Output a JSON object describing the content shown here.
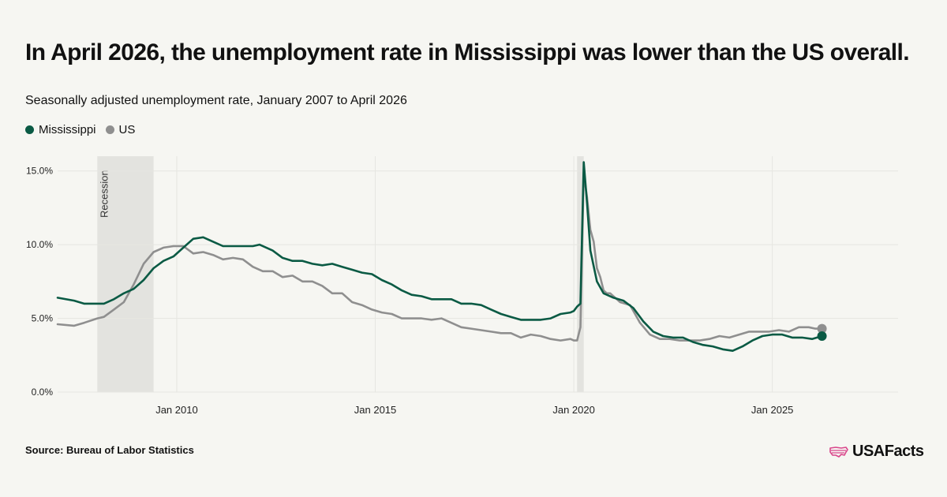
{
  "title": "In April 2026, the unemployment rate in Mississippi was lower than the US overall.",
  "subtitle": "Seasonally adjusted unemployment rate, January 2007 to April 2026",
  "source": "Source: Bureau of Labor Statistics",
  "brand": "USAFacts",
  "colors": {
    "mississippi": "#0a5a44",
    "us": "#8f8f8f",
    "recession": "#e3e3df",
    "grid": "#e6e6e1"
  },
  "chart_data": {
    "type": "line",
    "title": "In April 2026, the unemployment rate in Mississippi was lower than the US overall.",
    "subtitle": "Seasonally adjusted unemployment rate, January 2007 to April 2026",
    "x_range": [
      "2007-01",
      "2028-03"
    ],
    "ylim": [
      0,
      16
    ],
    "y_ticks": [
      0,
      5,
      10,
      15
    ],
    "y_tick_labels": [
      "0.0%",
      "5.0%",
      "10.0%",
      "15.0%"
    ],
    "x_ticks": [
      2010,
      2015,
      2020,
      2025
    ],
    "x_tick_labels": [
      "Jan 2010",
      "Jan 2015",
      "Jan 2020",
      "Jan 2025"
    ],
    "grid": true,
    "legend_position": "top-left",
    "recessions": [
      {
        "start": "2008-01",
        "end": "2009-06",
        "label": "Recession"
      },
      {
        "start": "2020-02",
        "end": "2020-04",
        "label": ""
      }
    ],
    "series": [
      {
        "name": "Mississippi",
        "color": "#0a5a44",
        "values": [
          [
            "2007-01",
            6.4
          ],
          [
            "2007-06",
            6.2
          ],
          [
            "2007-09",
            6.0
          ],
          [
            "2008-01",
            6.0
          ],
          [
            "2008-03",
            6.0
          ],
          [
            "2008-06",
            6.3
          ],
          [
            "2008-09",
            6.7
          ],
          [
            "2008-12",
            7.0
          ],
          [
            "2009-03",
            7.6
          ],
          [
            "2009-06",
            8.4
          ],
          [
            "2009-09",
            8.9
          ],
          [
            "2009-12",
            9.2
          ],
          [
            "2010-03",
            9.8
          ],
          [
            "2010-06",
            10.4
          ],
          [
            "2010-09",
            10.5
          ],
          [
            "2010-12",
            10.2
          ],
          [
            "2011-03",
            9.9
          ],
          [
            "2011-06",
            9.9
          ],
          [
            "2011-09",
            9.9
          ],
          [
            "2011-12",
            9.9
          ],
          [
            "2012-02",
            10.0
          ],
          [
            "2012-06",
            9.6
          ],
          [
            "2012-09",
            9.1
          ],
          [
            "2012-12",
            8.9
          ],
          [
            "2013-03",
            8.9
          ],
          [
            "2013-06",
            8.7
          ],
          [
            "2013-09",
            8.6
          ],
          [
            "2013-12",
            8.7
          ],
          [
            "2014-03",
            8.5
          ],
          [
            "2014-06",
            8.3
          ],
          [
            "2014-09",
            8.1
          ],
          [
            "2014-12",
            8.0
          ],
          [
            "2015-03",
            7.6
          ],
          [
            "2015-06",
            7.3
          ],
          [
            "2015-09",
            6.9
          ],
          [
            "2015-12",
            6.6
          ],
          [
            "2016-03",
            6.5
          ],
          [
            "2016-06",
            6.3
          ],
          [
            "2016-12",
            6.3
          ],
          [
            "2017-03",
            6.0
          ],
          [
            "2017-06",
            6.0
          ],
          [
            "2017-09",
            5.9
          ],
          [
            "2017-12",
            5.6
          ],
          [
            "2018-03",
            5.3
          ],
          [
            "2018-06",
            5.1
          ],
          [
            "2018-09",
            4.9
          ],
          [
            "2018-12",
            4.9
          ],
          [
            "2019-03",
            4.9
          ],
          [
            "2019-06",
            5.0
          ],
          [
            "2019-09",
            5.3
          ],
          [
            "2019-12",
            5.4
          ],
          [
            "2020-01",
            5.5
          ],
          [
            "2020-02",
            5.8
          ],
          [
            "2020-03",
            6.0
          ],
          [
            "2020-04",
            15.6
          ],
          [
            "2020-05",
            12.8
          ],
          [
            "2020-06",
            9.6
          ],
          [
            "2020-08",
            7.5
          ],
          [
            "2020-10",
            6.7
          ],
          [
            "2021-01",
            6.4
          ],
          [
            "2021-04",
            6.2
          ],
          [
            "2021-07",
            5.7
          ],
          [
            "2021-10",
            4.8
          ],
          [
            "2022-01",
            4.1
          ],
          [
            "2022-04",
            3.8
          ],
          [
            "2022-07",
            3.7
          ],
          [
            "2022-10",
            3.7
          ],
          [
            "2023-01",
            3.4
          ],
          [
            "2023-04",
            3.2
          ],
          [
            "2023-07",
            3.1
          ],
          [
            "2023-10",
            2.9
          ],
          [
            "2024-01",
            2.8
          ],
          [
            "2024-04",
            3.1
          ],
          [
            "2024-07",
            3.5
          ],
          [
            "2024-10",
            3.8
          ],
          [
            "2025-01",
            3.9
          ],
          [
            "2025-04",
            3.9
          ],
          [
            "2025-07",
            3.7
          ],
          [
            "2025-10",
            3.7
          ],
          [
            "2026-01",
            3.6
          ],
          [
            "2026-04",
            3.8
          ]
        ]
      },
      {
        "name": "US",
        "color": "#8f8f8f",
        "values": [
          [
            "2007-01",
            4.6
          ],
          [
            "2007-06",
            4.5
          ],
          [
            "2007-09",
            4.7
          ],
          [
            "2008-01",
            5.0
          ],
          [
            "2008-03",
            5.1
          ],
          [
            "2008-06",
            5.6
          ],
          [
            "2008-09",
            6.1
          ],
          [
            "2008-12",
            7.3
          ],
          [
            "2009-03",
            8.7
          ],
          [
            "2009-06",
            9.5
          ],
          [
            "2009-09",
            9.8
          ],
          [
            "2009-12",
            9.9
          ],
          [
            "2010-03",
            9.9
          ],
          [
            "2010-06",
            9.4
          ],
          [
            "2010-09",
            9.5
          ],
          [
            "2010-12",
            9.3
          ],
          [
            "2011-03",
            9.0
          ],
          [
            "2011-06",
            9.1
          ],
          [
            "2011-09",
            9.0
          ],
          [
            "2011-12",
            8.5
          ],
          [
            "2012-03",
            8.2
          ],
          [
            "2012-06",
            8.2
          ],
          [
            "2012-09",
            7.8
          ],
          [
            "2012-12",
            7.9
          ],
          [
            "2013-03",
            7.5
          ],
          [
            "2013-06",
            7.5
          ],
          [
            "2013-09",
            7.2
          ],
          [
            "2013-12",
            6.7
          ],
          [
            "2014-03",
            6.7
          ],
          [
            "2014-06",
            6.1
          ],
          [
            "2014-09",
            5.9
          ],
          [
            "2014-12",
            5.6
          ],
          [
            "2015-03",
            5.4
          ],
          [
            "2015-06",
            5.3
          ],
          [
            "2015-09",
            5.0
          ],
          [
            "2015-12",
            5.0
          ],
          [
            "2016-03",
            5.0
          ],
          [
            "2016-06",
            4.9
          ],
          [
            "2016-09",
            5.0
          ],
          [
            "2016-12",
            4.7
          ],
          [
            "2017-03",
            4.4
          ],
          [
            "2017-06",
            4.3
          ],
          [
            "2017-09",
            4.2
          ],
          [
            "2017-12",
            4.1
          ],
          [
            "2018-03",
            4.0
          ],
          [
            "2018-06",
            4.0
          ],
          [
            "2018-09",
            3.7
          ],
          [
            "2018-12",
            3.9
          ],
          [
            "2019-03",
            3.8
          ],
          [
            "2019-06",
            3.6
          ],
          [
            "2019-09",
            3.5
          ],
          [
            "2019-12",
            3.6
          ],
          [
            "2020-01",
            3.5
          ],
          [
            "2020-02",
            3.5
          ],
          [
            "2020-03",
            4.4
          ],
          [
            "2020-04",
            14.8
          ],
          [
            "2020-05",
            13.2
          ],
          [
            "2020-06",
            11.0
          ],
          [
            "2020-07",
            10.2
          ],
          [
            "2020-08",
            8.4
          ],
          [
            "2020-09",
            7.8
          ],
          [
            "2020-10",
            6.9
          ],
          [
            "2020-11",
            6.7
          ],
          [
            "2020-12",
            6.7
          ],
          [
            "2021-03",
            6.1
          ],
          [
            "2021-06",
            5.9
          ],
          [
            "2021-09",
            4.7
          ],
          [
            "2021-12",
            3.9
          ],
          [
            "2022-03",
            3.6
          ],
          [
            "2022-06",
            3.6
          ],
          [
            "2022-09",
            3.5
          ],
          [
            "2022-12",
            3.5
          ],
          [
            "2023-03",
            3.5
          ],
          [
            "2023-06",
            3.6
          ],
          [
            "2023-09",
            3.8
          ],
          [
            "2023-12",
            3.7
          ],
          [
            "2024-03",
            3.9
          ],
          [
            "2024-06",
            4.1
          ],
          [
            "2024-09",
            4.1
          ],
          [
            "2024-12",
            4.1
          ],
          [
            "2025-03",
            4.2
          ],
          [
            "2025-06",
            4.1
          ],
          [
            "2025-09",
            4.4
          ],
          [
            "2025-12",
            4.4
          ],
          [
            "2026-02",
            4.3
          ],
          [
            "2026-04",
            4.3
          ]
        ]
      }
    ]
  }
}
